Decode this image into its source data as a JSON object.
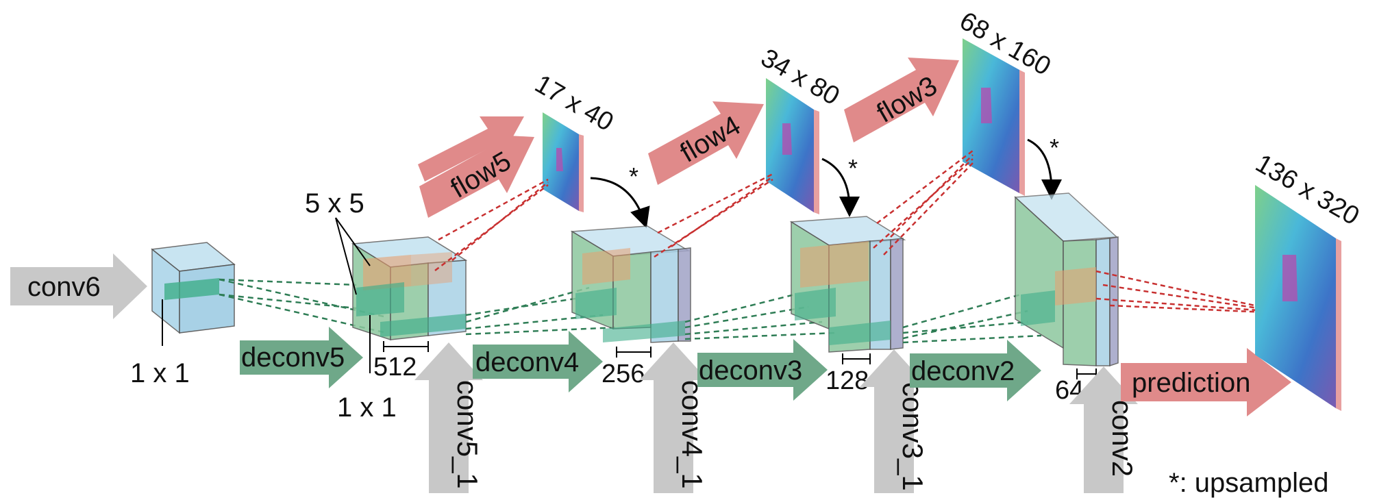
{
  "inputs": {
    "conv6": "conv6",
    "conv5_1": "conv5_1",
    "conv4_1": "conv4_1",
    "conv3_1": "conv3_1",
    "conv2": "conv2"
  },
  "deconv": {
    "deconv5": "deconv5",
    "deconv4": "deconv4",
    "deconv3": "deconv3",
    "deconv2": "deconv2"
  },
  "flows": {
    "flow5": "flow5",
    "flow4": "flow4",
    "flow3": "flow3",
    "prediction": "prediction"
  },
  "resolutions": {
    "r5": "17 x 40",
    "r4": "34 x 80",
    "r3": "68 x 160",
    "r2": "136 x 320"
  },
  "channels": {
    "c512": "512",
    "c256": "256",
    "c128": "128",
    "c64": "64"
  },
  "kernels": {
    "k1x1_a": "1 x 1",
    "k1x1_b": "1 x 1",
    "k5x5": "5 x 5"
  },
  "upsample_marks": [
    "*",
    "*",
    "*"
  ],
  "legend": "*: upsampled",
  "colors": {
    "gray_arrow": "#c8c8c8",
    "green_arrow": "#6fa889",
    "red_arrow": "#e08a8a",
    "cube_blue": "#a9d2e6",
    "cube_green": "#8cc79e",
    "dashed_green": "#2e7d55",
    "dashed_red": "#c83030"
  }
}
